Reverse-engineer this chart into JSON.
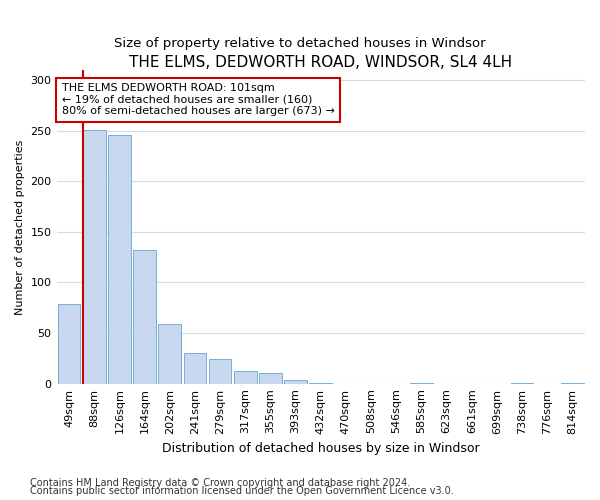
{
  "title": "THE ELMS, DEDWORTH ROAD, WINDSOR, SL4 4LH",
  "subtitle": "Size of property relative to detached houses in Windsor",
  "xlabel": "Distribution of detached houses by size in Windsor",
  "ylabel": "Number of detached properties",
  "categories": [
    "49sqm",
    "88sqm",
    "126sqm",
    "164sqm",
    "202sqm",
    "241sqm",
    "279sqm",
    "317sqm",
    "355sqm",
    "393sqm",
    "432sqm",
    "470sqm",
    "508sqm",
    "546sqm",
    "585sqm",
    "623sqm",
    "661sqm",
    "699sqm",
    "738sqm",
    "776sqm",
    "814sqm"
  ],
  "values": [
    79,
    251,
    246,
    132,
    59,
    30,
    24,
    13,
    11,
    4,
    1,
    0,
    0,
    0,
    1,
    0,
    0,
    0,
    1,
    0,
    1
  ],
  "bar_color": "#c8d9ef",
  "bar_edge_color": "#7aadd4",
  "ylim": [
    0,
    310
  ],
  "yticks": [
    0,
    50,
    100,
    150,
    200,
    250,
    300
  ],
  "property_line_x": 1,
  "annotation_text": "THE ELMS DEDWORTH ROAD: 101sqm\n← 19% of detached houses are smaller (160)\n80% of semi-detached houses are larger (673) →",
  "annotation_box_color": "#ffffff",
  "annotation_edge_color": "#cc0000",
  "property_line_color": "#cc0000",
  "footnote1": "Contains HM Land Registry data © Crown copyright and database right 2024.",
  "footnote2": "Contains public sector information licensed under the Open Government Licence v3.0.",
  "background_color": "#ffffff",
  "plot_background": "#ffffff",
  "grid_color": "#d0dce8",
  "title_fontsize": 11,
  "subtitle_fontsize": 9.5,
  "xlabel_fontsize": 9,
  "ylabel_fontsize": 8,
  "tick_fontsize": 8,
  "footnote_fontsize": 7,
  "annotation_fontsize": 8
}
